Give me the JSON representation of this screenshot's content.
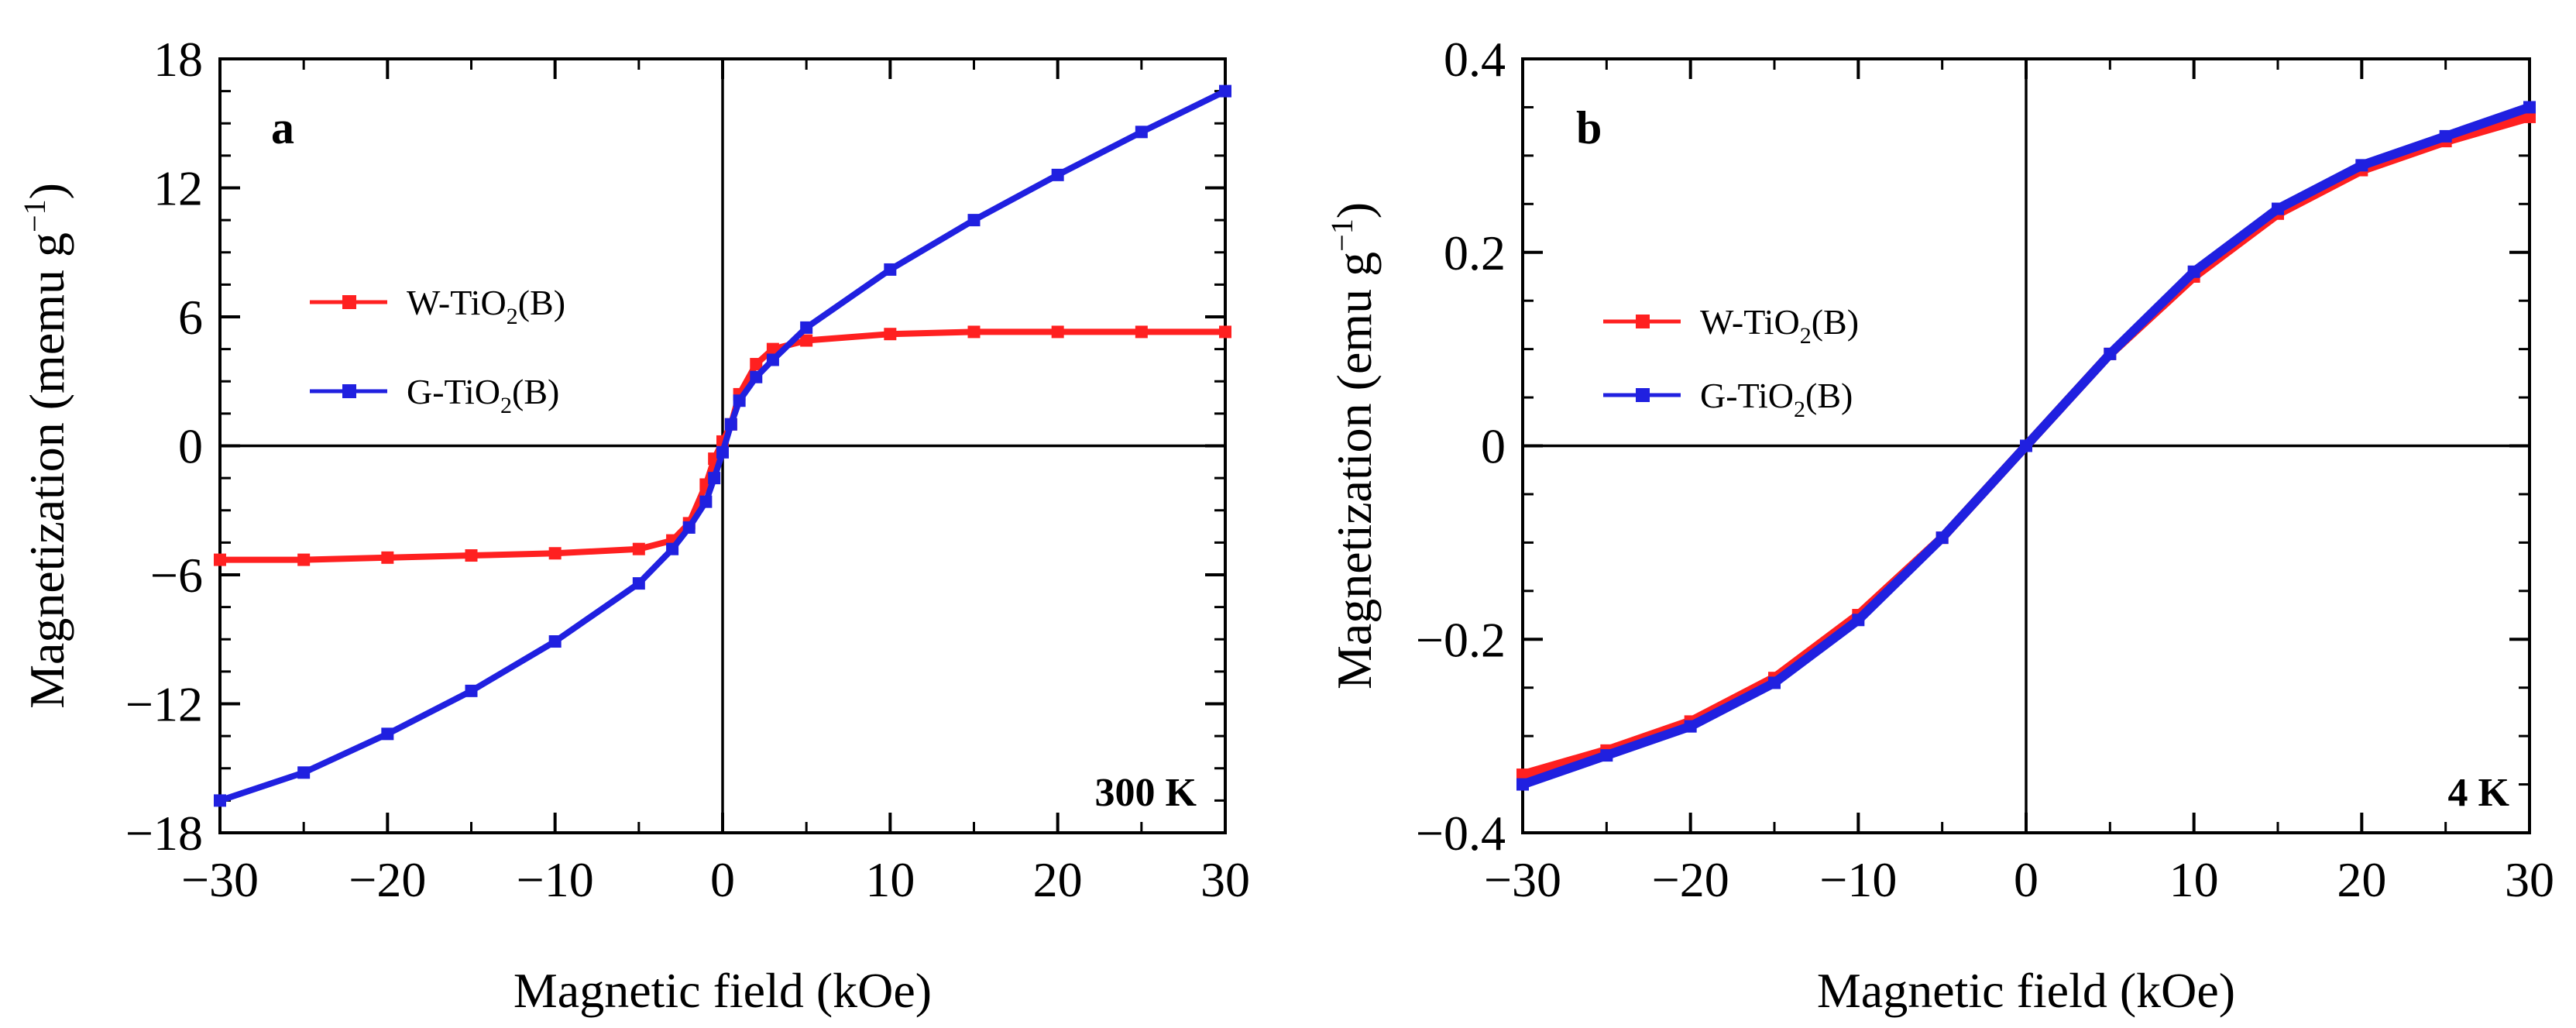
{
  "chart_data": [
    {
      "type": "line",
      "panel_label": "a",
      "temperature_label": "300 K",
      "xlabel": "Magnetic field (kOe)",
      "ylabel": "Magnetization (memu g",
      "ylabel_sup": "−1",
      "ylabel_close": ")",
      "xlim": [
        -30,
        30
      ],
      "ylim": [
        -18,
        18
      ],
      "xticks": [
        -30,
        -20,
        -10,
        0,
        10,
        20,
        30
      ],
      "xtick_labels": [
        "−30",
        "−20",
        "−10",
        "0",
        "10",
        "20",
        "30"
      ],
      "yticks": [
        -18,
        -12,
        -6,
        0,
        6,
        12,
        18
      ],
      "ytick_labels": [
        "−18",
        "−12",
        "−6",
        "0",
        "6",
        "12",
        "18"
      ],
      "legend_location": "center-left",
      "series": [
        {
          "name": "W-TiO2(B)",
          "legend_prefix": "W-TiO",
          "legend_sub": "2",
          "legend_suffix": "(B)",
          "color": "#ff2020",
          "x": [
            -30,
            -25,
            -20,
            -15,
            -10,
            -5,
            -3,
            -2,
            -1,
            -0.5,
            0,
            0.5,
            1,
            2,
            3,
            5,
            10,
            15,
            20,
            25,
            30
          ],
          "values": [
            -5.3,
            -5.3,
            -5.2,
            -5.1,
            -5.0,
            -4.8,
            -4.4,
            -3.6,
            -1.8,
            -0.6,
            0.2,
            1.0,
            2.4,
            3.8,
            4.5,
            4.9,
            5.2,
            5.3,
            5.3,
            5.3,
            5.3
          ]
        },
        {
          "name": "G-TiO2(B)",
          "legend_prefix": "G-TiO",
          "legend_sub": "2",
          "legend_suffix": "(B)",
          "color": "#2020e0",
          "x": [
            -30,
            -25,
            -20,
            -15,
            -10,
            -5,
            -3,
            -2,
            -1,
            -0.5,
            0,
            0.5,
            1,
            2,
            3,
            5,
            10,
            15,
            20,
            25,
            30
          ],
          "values": [
            -16.5,
            -15.2,
            -13.4,
            -11.4,
            -9.1,
            -6.4,
            -4.8,
            -3.8,
            -2.6,
            -1.5,
            -0.3,
            1.0,
            2.1,
            3.2,
            4.0,
            5.5,
            8.2,
            10.5,
            12.6,
            14.6,
            16.5
          ]
        }
      ]
    },
    {
      "type": "line",
      "panel_label": "b",
      "temperature_label": "4 K",
      "xlabel": "Magnetic field (kOe)",
      "ylabel": "Magnetization (emu g",
      "ylabel_sup": "−1",
      "ylabel_close": ")",
      "xlim": [
        -30,
        30
      ],
      "ylim": [
        -0.4,
        0.4
      ],
      "xticks": [
        -30,
        -20,
        -10,
        0,
        10,
        20,
        30
      ],
      "xtick_labels": [
        "−30",
        "−20",
        "−10",
        "0",
        "10",
        "20",
        "30"
      ],
      "yticks": [
        -0.4,
        -0.2,
        0,
        0.2,
        0.4
      ],
      "ytick_labels": [
        "−0.4",
        "−0.2",
        "0",
        "0.2",
        "0.4"
      ],
      "legend_location": "center-left",
      "series": [
        {
          "name": "W-TiO2(B)",
          "legend_prefix": "W-TiO",
          "legend_sub": "2",
          "legend_suffix": "(B)",
          "color": "#ff2020",
          "x": [
            -30,
            -25,
            -20,
            -15,
            -10,
            -5,
            0,
            5,
            10,
            15,
            20,
            25,
            30
          ],
          "values": [
            -0.34,
            -0.315,
            -0.285,
            -0.24,
            -0.175,
            -0.095,
            0.0,
            0.095,
            0.175,
            0.24,
            0.285,
            0.315,
            0.34
          ]
        },
        {
          "name": "G-TiO2(B)",
          "legend_prefix": "G-TiO",
          "legend_sub": "2",
          "legend_suffix": "(B)",
          "color": "#2020e0",
          "x": [
            -30,
            -25,
            -20,
            -15,
            -10,
            -5,
            0,
            5,
            10,
            15,
            20,
            25,
            30
          ],
          "values": [
            -0.35,
            -0.32,
            -0.29,
            -0.245,
            -0.18,
            -0.095,
            0.0,
            0.095,
            0.18,
            0.245,
            0.29,
            0.32,
            0.35
          ]
        }
      ]
    }
  ]
}
